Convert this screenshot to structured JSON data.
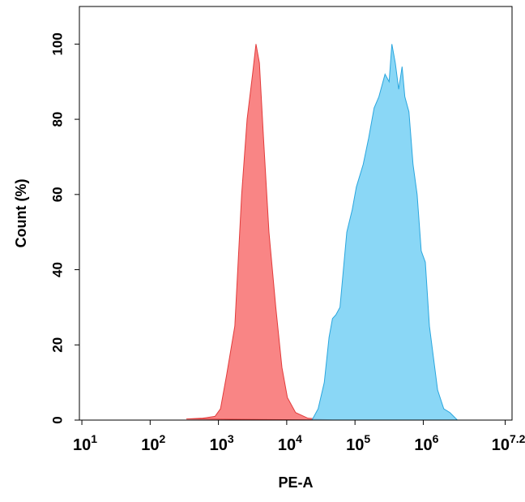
{
  "chart_data": {
    "type": "area",
    "xlabel": "PE-A",
    "ylabel": "Count  (%)",
    "xscale": "log",
    "xlim": [
      9.2,
      19952623
    ],
    "ylim": [
      0,
      110
    ],
    "xticks": [
      {
        "value": 10,
        "label": "10",
        "exponent": "1"
      },
      {
        "value": 100,
        "label": "10",
        "exponent": "2"
      },
      {
        "value": 1000,
        "label": "10",
        "exponent": "3"
      },
      {
        "value": 10000,
        "label": "10",
        "exponent": "4"
      },
      {
        "value": 100000,
        "label": "10",
        "exponent": "5"
      },
      {
        "value": 1000000,
        "label": "10",
        "exponent": "6"
      },
      {
        "value": 15848932,
        "label": "10",
        "exponent": "7.2"
      }
    ],
    "yticks": [
      0,
      20,
      40,
      60,
      80,
      100
    ],
    "series": [
      {
        "color": "#f87878",
        "edge": "#e23b3b",
        "x": [
          339,
          589,
          891,
          1072,
          1318,
          1738,
          2188,
          2630,
          3162,
          3548,
          3981,
          4571,
          5495,
          6918,
          8511,
          10233,
          13490,
          20417,
          46774
        ],
        "values": [
          0.3,
          0.5,
          1,
          3,
          12,
          25,
          60,
          80,
          92,
          100,
          95,
          75,
          50,
          30,
          14,
          6,
          2,
          0.5,
          0
        ]
      },
      {
        "color": "#7dd3f5",
        "edge": "#2aa6de",
        "x": [
          23442,
          28840,
          35481,
          41687,
          46774,
          52481,
          60256,
          75858,
          91201,
          104713,
          131826,
          158489,
          190546,
          223872,
          275423,
          316228,
          346737,
          389045,
          436516,
          489779,
          537032,
          616595,
          707946,
          812831,
          933254,
          1071519,
          1230269,
          1621810,
          1995262,
          2454709,
          3162278
        ],
        "values": [
          0,
          3,
          10,
          22,
          27,
          28,
          30,
          50,
          56,
          62,
          68,
          75,
          83,
          86,
          92,
          90,
          100,
          95,
          88,
          94,
          86,
          82,
          68,
          60,
          45,
          42,
          25,
          8,
          3,
          2,
          0
        ]
      }
    ]
  }
}
